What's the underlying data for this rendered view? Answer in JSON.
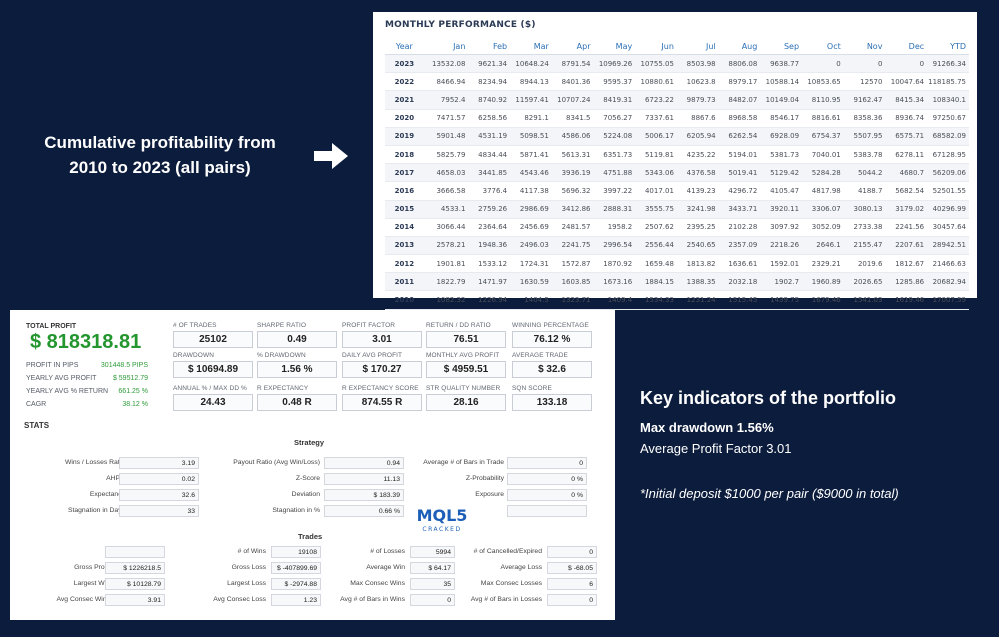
{
  "monthly": {
    "title": "MONTHLY PERFORMANCE ($)",
    "columns": [
      "Year",
      "Jan",
      "Feb",
      "Mar",
      "Apr",
      "May",
      "Jun",
      "Jul",
      "Aug",
      "Sep",
      "Oct",
      "Nov",
      "Dec",
      "YTD"
    ],
    "rows": [
      [
        "2023",
        "13532.08",
        "9621.34",
        "10648.24",
        "8791.54",
        "10969.26",
        "10755.05",
        "8503.98",
        "8806.08",
        "9638.77",
        "0",
        "0",
        "0",
        "91266.34"
      ],
      [
        "2022",
        "8466.94",
        "8234.94",
        "8944.13",
        "8401.36",
        "9595.37",
        "10880.61",
        "10623.8",
        "8979.17",
        "10588.14",
        "10853.65",
        "12570",
        "10047.64",
        "118185.75"
      ],
      [
        "2021",
        "7952.4",
        "8740.92",
        "11597.41",
        "10707.24",
        "8419.31",
        "6723.22",
        "9879.73",
        "8482.07",
        "10149.04",
        "8110.95",
        "9162.47",
        "8415.34",
        "108340.1"
      ],
      [
        "2020",
        "7471.57",
        "6258.56",
        "8291.1",
        "8341.5",
        "7056.27",
        "7337.61",
        "8867.6",
        "8968.58",
        "8546.17",
        "8816.61",
        "8358.36",
        "8936.74",
        "97250.67"
      ],
      [
        "2019",
        "5901.48",
        "4531.19",
        "5098.51",
        "4586.06",
        "5224.08",
        "5006.17",
        "6205.94",
        "6262.54",
        "6928.09",
        "6754.37",
        "5507.95",
        "6575.71",
        "68582.09"
      ],
      [
        "2018",
        "5825.79",
        "4834.44",
        "5871.41",
        "5613.31",
        "6351.73",
        "5119.81",
        "4235.22",
        "5194.01",
        "5381.73",
        "7040.01",
        "5383.78",
        "6278.11",
        "67128.95"
      ],
      [
        "2017",
        "4658.03",
        "3441.85",
        "4543.46",
        "3936.19",
        "4751.88",
        "5343.06",
        "4376.58",
        "5019.41",
        "5129.42",
        "5284.28",
        "5044.2",
        "4680.7",
        "56209.06"
      ],
      [
        "2016",
        "3666.58",
        "3776.4",
        "4117.38",
        "5696.32",
        "3997.22",
        "4017.01",
        "4139.23",
        "4296.72",
        "4105.47",
        "4817.98",
        "4188.7",
        "5682.54",
        "52501.55"
      ],
      [
        "2015",
        "4533.1",
        "2759.26",
        "2986.69",
        "3412.86",
        "2888.31",
        "3555.75",
        "3241.98",
        "3433.71",
        "3920.11",
        "3306.07",
        "3080.13",
        "3179.02",
        "40296.99"
      ],
      [
        "2014",
        "3066.44",
        "2364.64",
        "2456.69",
        "2481.57",
        "1958.2",
        "2507.62",
        "2395.25",
        "2102.28",
        "3097.92",
        "3052.09",
        "2733.38",
        "2241.56",
        "30457.64"
      ],
      [
        "2013",
        "2578.21",
        "1948.36",
        "2496.03",
        "2241.75",
        "2996.54",
        "2556.44",
        "2540.65",
        "2357.09",
        "2218.26",
        "2646.1",
        "2155.47",
        "2207.61",
        "28942.51"
      ],
      [
        "2012",
        "1901.81",
        "1533.12",
        "1724.31",
        "1572.87",
        "1870.92",
        "1659.48",
        "1813.82",
        "1636.61",
        "1592.01",
        "2329.21",
        "2019.6",
        "1812.67",
        "21466.63"
      ],
      [
        "2011",
        "1822.79",
        "1471.97",
        "1630.59",
        "1603.85",
        "1673.16",
        "1884.15",
        "1388.35",
        "2032.18",
        "1902.7",
        "1960.89",
        "2026.65",
        "1285.86",
        "20682.94"
      ],
      [
        "2010",
        "1082.32",
        "1226.94",
        "1404.5",
        "1323.71",
        "1409.4",
        "1534.33",
        "1231.24",
        "1515.45",
        "1439.75",
        "1679.46",
        "1541.03",
        "1619.46",
        "17007.59"
      ]
    ]
  },
  "captions": {
    "cumulative_line1": "Cumulative profitability from",
    "cumulative_line2": "2010 to 2023 (all pairs)",
    "key_title": "Key indicators of the portfolio",
    "max_drawdown": "Max drawdown 1.56%",
    "avg_pf": "Average Profit Factor 3.01",
    "initial": "*Initial deposit $1000 per pair ($9000 in total)"
  },
  "summary": {
    "total_profit_label": "TOTAL PROFIT",
    "total_profit_value": "$ 818318.81",
    "lines": [
      {
        "label": "PROFIT IN PIPS",
        "value": "301448.5 PIPS"
      },
      {
        "label": "YEARLY AVG PROFIT",
        "value": "$ 59512.79"
      },
      {
        "label": "YEARLY AVG % RETURN",
        "value": "661.25 %"
      },
      {
        "label": "CAGR",
        "value": "38.12 %"
      }
    ],
    "kpis": [
      {
        "label": "# OF TRADES",
        "value": "25102"
      },
      {
        "label": "SHARPE RATIO",
        "value": "0.49"
      },
      {
        "label": "PROFIT FACTOR",
        "value": "3.01"
      },
      {
        "label": "RETURN / DD RATIO",
        "value": "76.51"
      },
      {
        "label": "WINNING PERCENTAGE",
        "value": "76.12 %"
      },
      {
        "label": "DRAWDOWN",
        "value": "$ 10694.89"
      },
      {
        "label": "% DRAWDOWN",
        "value": "1.56 %"
      },
      {
        "label": "DAILY AVG PROFIT",
        "value": "$ 170.27"
      },
      {
        "label": "MONTHLY AVG PROFIT",
        "value": "$ 4959.51"
      },
      {
        "label": "AVERAGE TRADE",
        "value": "$ 32.6"
      },
      {
        "label": "ANNUAL % / MAX DD %",
        "value": "24.43"
      },
      {
        "label": "R EXPECTANCY",
        "value": "0.48 R"
      },
      {
        "label": "R EXPECTANCY SCORE",
        "value": "874.55 R"
      },
      {
        "label": "STR QUALITY NUMBER",
        "value": "28.16"
      },
      {
        "label": "SQN SCORE",
        "value": "133.18"
      }
    ]
  },
  "stats": {
    "title": "STATS",
    "strategy_title": "Strategy",
    "strategy_rows": [
      [
        {
          "label": "Wins / Losses Ratio",
          "value": "3.19"
        },
        {
          "label": "Payout Ratio (Avg Win/Loss)",
          "value": "0.94"
        },
        {
          "label": "Average # of Bars in Trade",
          "value": "0"
        }
      ],
      [
        {
          "label": "AHPR",
          "value": "0.02"
        },
        {
          "label": "Z-Score",
          "value": "11.13"
        },
        {
          "label": "Z-Probability",
          "value": "0 %"
        }
      ],
      [
        {
          "label": "Expectancy",
          "value": "32.6"
        },
        {
          "label": "Deviation",
          "value": "$ 183.39"
        },
        {
          "label": "Exposure",
          "value": "0 %"
        }
      ],
      [
        {
          "label": "Stagnation in Days",
          "value": "33"
        },
        {
          "label": "Stagnation in %",
          "value": "0.66 %"
        },
        {
          "label": "",
          "value": ""
        }
      ]
    ],
    "trades_title": "Trades",
    "trades_rows": [
      [
        {
          "label": "",
          "value": ""
        },
        {
          "label": "# of Wins",
          "value": "19108"
        },
        {
          "label": "# of Losses",
          "value": "5994"
        },
        {
          "label": "# of Cancelled/Expired",
          "value": "0"
        }
      ],
      [
        {
          "label": "Gross Profit",
          "value": "$ 1226218.5"
        },
        {
          "label": "Gross Loss",
          "value": "$ -407899.69"
        },
        {
          "label": "Average Win",
          "value": "$ 64.17"
        },
        {
          "label": "Average Loss",
          "value": "$ -68.05"
        }
      ],
      [
        {
          "label": "Largest Win",
          "value": "$ 10128.79"
        },
        {
          "label": "Largest Loss",
          "value": "$ -2974.88"
        },
        {
          "label": "Max Consec Wins",
          "value": "35"
        },
        {
          "label": "Max Consec Losses",
          "value": "6"
        }
      ],
      [
        {
          "label": "Avg Consec Wins",
          "value": "3.91"
        },
        {
          "label": "Avg Consec Loss",
          "value": "1.23"
        },
        {
          "label": "Avg # of Bars in Wins",
          "value": "0"
        },
        {
          "label": "Avg # of Bars in Losses",
          "value": "0"
        }
      ]
    ]
  },
  "logo": {
    "main": "MQL5",
    "sub": "CRACKED",
    "color": "#1d5fb8"
  }
}
